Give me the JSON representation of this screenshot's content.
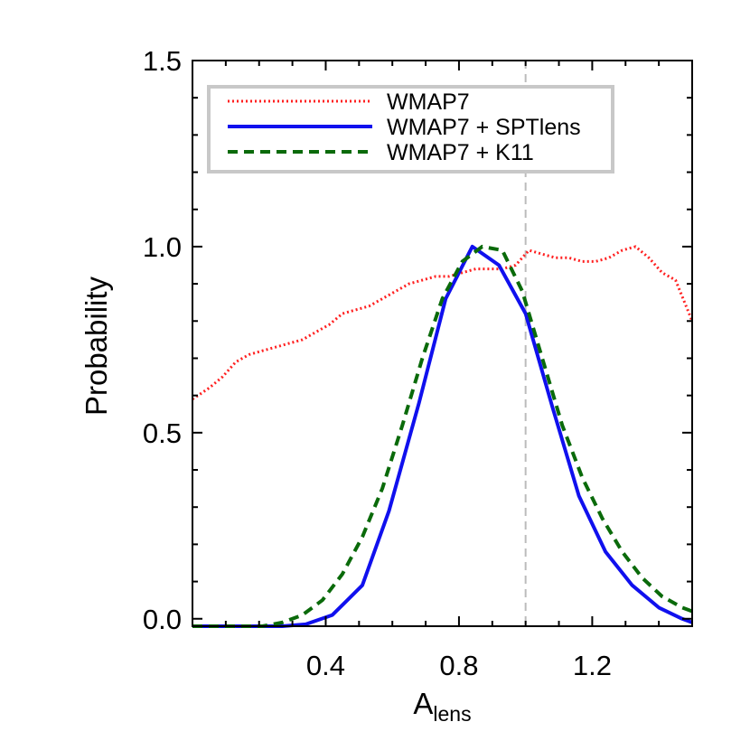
{
  "chart_data": {
    "type": "line",
    "xlabel": "A",
    "xlabel_sub": "lens",
    "ylabel": "Probability",
    "xlim": [
      0.0,
      1.5
    ],
    "ylim": [
      -0.02,
      1.5
    ],
    "xticks": [
      0.4,
      0.8,
      1.2
    ],
    "xtick_labels": [
      "0.4",
      "0.8",
      "1.2"
    ],
    "yticks": [
      0.0,
      0.5,
      1.0,
      1.5
    ],
    "ytick_labels": [
      "0.0",
      "0.5",
      "1.0",
      "1.5"
    ],
    "grid": false,
    "legend_position": "top-left",
    "reference_line": {
      "x": 1.0,
      "color": "#bbbbbb"
    },
    "series": [
      {
        "name": "WMAP7",
        "color": "#ff2020",
        "style": "dotted",
        "x": [
          0.0,
          0.05,
          0.09,
          0.13,
          0.17,
          0.21,
          0.25,
          0.29,
          0.33,
          0.37,
          0.41,
          0.45,
          0.49,
          0.53,
          0.57,
          0.61,
          0.65,
          0.69,
          0.73,
          0.77,
          0.81,
          0.85,
          0.89,
          0.93,
          0.97,
          1.01,
          1.05,
          1.09,
          1.13,
          1.17,
          1.21,
          1.25,
          1.29,
          1.33,
          1.37,
          1.41,
          1.45,
          1.5
        ],
        "y": [
          0.59,
          0.62,
          0.65,
          0.69,
          0.71,
          0.72,
          0.73,
          0.74,
          0.75,
          0.77,
          0.79,
          0.82,
          0.83,
          0.84,
          0.86,
          0.88,
          0.9,
          0.91,
          0.92,
          0.92,
          0.93,
          0.94,
          0.94,
          0.94,
          0.95,
          0.99,
          0.98,
          0.97,
          0.97,
          0.96,
          0.96,
          0.97,
          0.99,
          1.0,
          0.97,
          0.93,
          0.91,
          0.8
        ]
      },
      {
        "name": "WMAP7 + SPTlens",
        "color": "#1010ee",
        "style": "solid",
        "x": [
          0.0,
          0.09,
          0.19,
          0.27,
          0.34,
          0.42,
          0.51,
          0.59,
          0.68,
          0.76,
          0.84,
          0.92,
          1.0,
          1.08,
          1.16,
          1.24,
          1.32,
          1.4,
          1.47,
          1.5
        ],
        "y": [
          -0.02,
          -0.02,
          -0.02,
          -0.02,
          -0.015,
          0.01,
          0.09,
          0.29,
          0.58,
          0.86,
          1.0,
          0.95,
          0.82,
          0.57,
          0.33,
          0.18,
          0.09,
          0.03,
          0.0,
          -0.01
        ]
      },
      {
        "name": "WMAP7 + K11",
        "color": "#0a6a0a",
        "style": "dashed",
        "x": [
          0.0,
          0.07,
          0.14,
          0.21,
          0.27,
          0.33,
          0.39,
          0.45,
          0.51,
          0.57,
          0.63,
          0.69,
          0.75,
          0.81,
          0.87,
          0.93,
          0.99,
          1.05,
          1.11,
          1.17,
          1.23,
          1.29,
          1.35,
          1.41,
          1.47,
          1.5
        ],
        "y": [
          -0.02,
          -0.02,
          -0.02,
          -0.02,
          -0.01,
          0.01,
          0.05,
          0.12,
          0.22,
          0.35,
          0.52,
          0.7,
          0.86,
          0.96,
          1.0,
          0.99,
          0.88,
          0.7,
          0.52,
          0.38,
          0.27,
          0.18,
          0.11,
          0.06,
          0.03,
          0.02
        ]
      }
    ]
  }
}
